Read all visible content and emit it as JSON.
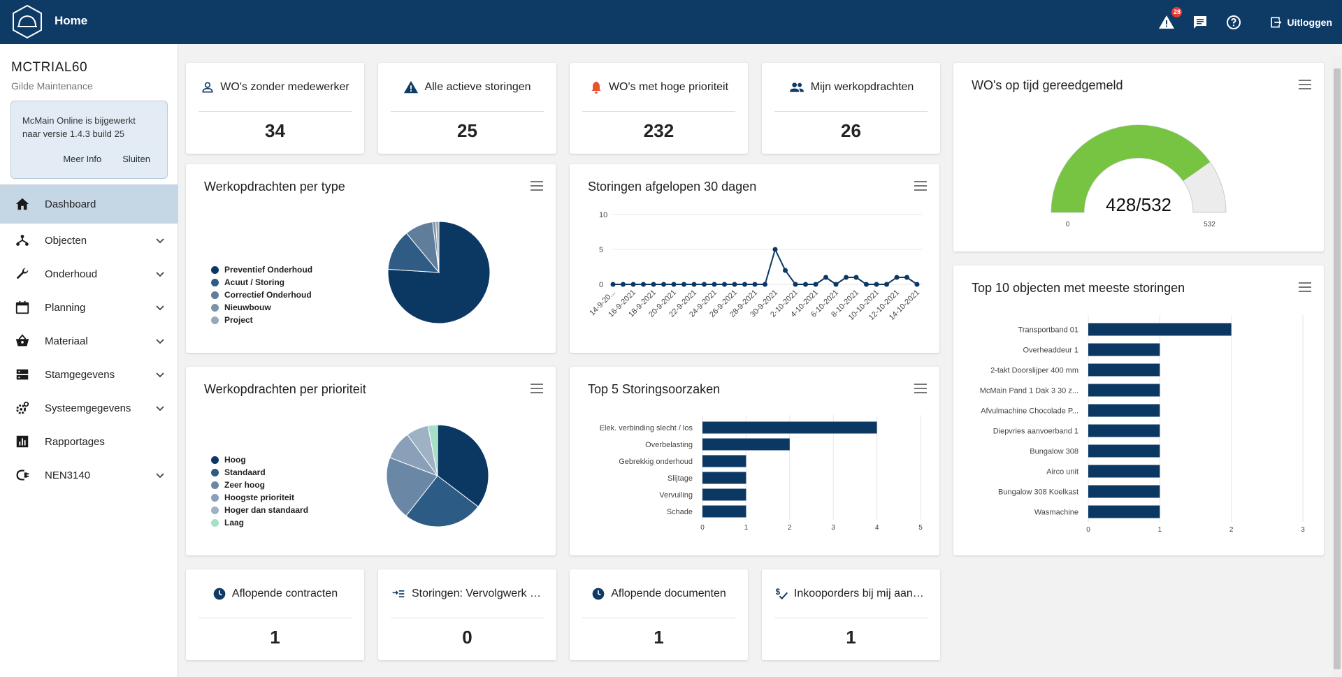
{
  "header": {
    "title": "Home",
    "alert_count": "28",
    "logout_label": "Uitloggen"
  },
  "sidebar": {
    "tenant": "MCTRIAL60",
    "company": "Gilde Maintenance",
    "notice": {
      "text": "McMain Online is bijgewerkt naar versie 1.4.3 build 25",
      "more_label": "Meer Info",
      "close_label": "Sluiten"
    },
    "items": [
      {
        "label": "Dashboard",
        "icon": "home-icon"
      },
      {
        "label": "Objecten",
        "icon": "hierarchy-icon"
      },
      {
        "label": "Onderhoud",
        "icon": "wrench-icon"
      },
      {
        "label": "Planning",
        "icon": "calendar-icon"
      },
      {
        "label": "Materiaal",
        "icon": "basket-icon"
      },
      {
        "label": "Stamgegevens",
        "icon": "storage-icon"
      },
      {
        "label": "Systeemgegevens",
        "icon": "settings-icon"
      },
      {
        "label": "Rapportages",
        "icon": "chart-icon"
      },
      {
        "label": "NEN3140",
        "icon": "plug-icon"
      }
    ]
  },
  "stats_top": [
    {
      "label": "WO's zonder medewerker",
      "value": "34",
      "icon": "person-outline-icon"
    },
    {
      "label": "Alle actieve storingen",
      "value": "25",
      "icon": "warning-icon"
    },
    {
      "label": "WO's met hoge prioriteit",
      "value": "232",
      "icon": "alarm-bell-icon"
    },
    {
      "label": "Mijn werkopdrachten",
      "value": "26",
      "icon": "group-icon"
    }
  ],
  "stats_bottom": [
    {
      "label": "Aflopende contracten",
      "value": "1",
      "icon": "clock-icon"
    },
    {
      "label": "Storingen: Vervolgwerk v...",
      "value": "0",
      "icon": "follow-up-icon"
    },
    {
      "label": "Aflopende documenten",
      "value": "1",
      "icon": "clock-icon"
    },
    {
      "label": "Inkooporders bij mij aang...",
      "value": "1",
      "icon": "money-check-icon"
    }
  ],
  "colors": {
    "navy": "#0e3a66",
    "accent_green": "#76c442",
    "alert_red": "#e53935"
  },
  "chart_data": [
    {
      "id": "type",
      "type": "pie",
      "title": "Werkopdrachten per type",
      "categories": [
        "Preventief Onderhoud",
        "Acuut / Storing",
        "Correctief Onderhoud",
        "Nieuwbouw",
        "Project"
      ],
      "values": [
        76,
        13,
        9,
        1,
        1
      ],
      "colors": [
        "#0b3763",
        "#2f5b84",
        "#607d9b",
        "#7d93ab",
        "#97a8ba"
      ]
    },
    {
      "id": "prioriteit",
      "type": "pie",
      "title": "Werkopdrachten per prioriteit",
      "categories": [
        "Hoog",
        "Standaard",
        "Zeer hoog",
        "Hoogste prioriteit",
        "Hoger dan standaard",
        "Laag"
      ],
      "values": [
        35,
        25,
        20,
        9,
        7,
        3
      ],
      "colors": [
        "#0b3763",
        "#2c5b85",
        "#6a88a6",
        "#8aa0b8",
        "#9eb1c5",
        "#a8dfc8"
      ]
    },
    {
      "id": "storingen30",
      "type": "line",
      "title": "Storingen afgelopen 30 dagen",
      "x": [
        "14-9-2021",
        "15-9-2021",
        "16-9-2021",
        "17-9-2021",
        "18-9-2021",
        "19-9-2021",
        "20-9-2021",
        "21-9-2021",
        "22-9-2021",
        "23-9-2021",
        "24-9-2021",
        "25-9-2021",
        "26-9-2021",
        "27-9-2021",
        "28-9-2021",
        "29-9-2021",
        "30-9-2021",
        "1-10-2021",
        "2-10-2021",
        "3-10-2021",
        "4-10-2021",
        "5-10-2021",
        "6-10-2021",
        "7-10-2021",
        "8-10-2021",
        "9-10-2021",
        "10-10-2021",
        "11-10-2021",
        "12-10-2021",
        "13-10-2021",
        "14-10-2021"
      ],
      "x_tick_labels": [
        "14-9-20...",
        "16-9-2021",
        "18-9-2021",
        "20-9-2021",
        "22-9-2021",
        "24-9-2021",
        "26-9-2021",
        "28-9-2021",
        "30-9-2021",
        "2-10-2021",
        "4-10-2021",
        "6-10-2021",
        "8-10-2021",
        "10-10-2021",
        "12-10-2021",
        "14-10-2021"
      ],
      "values": [
        0,
        0,
        0,
        0,
        0,
        0,
        0,
        0,
        0,
        0,
        0,
        0,
        0,
        0,
        0,
        0,
        5,
        2,
        0,
        0,
        0,
        1,
        0,
        1,
        1,
        0,
        0,
        0,
        1,
        1,
        0
      ],
      "ylim": [
        0,
        10
      ],
      "y_ticks": [
        0,
        5,
        10
      ]
    },
    {
      "id": "oorzaken",
      "type": "bar",
      "orientation": "horizontal",
      "title": "Top 5 Storingsoorzaken",
      "categories": [
        "Elek. verbinding slecht / los",
        "Overbelasting",
        "Gebrekkig onderhoud",
        "Slijtage",
        "Vervuiling",
        "Schade"
      ],
      "values": [
        4,
        2,
        1,
        1,
        1,
        1
      ],
      "xlim": [
        0,
        5
      ],
      "x_ticks": [
        0,
        1,
        2,
        3,
        4,
        5
      ]
    },
    {
      "id": "gauge",
      "type": "gauge",
      "title": "WO's op tijd gereedgemeld",
      "value": 428,
      "max": 532,
      "min": 0,
      "label": "428/532"
    },
    {
      "id": "top10",
      "type": "bar",
      "orientation": "horizontal",
      "title": "Top 10 objecten met meeste storingen",
      "categories": [
        "Transportband 01",
        "Overheaddeur 1",
        "2-takt Doorslijper 400 mm",
        "McMain Pand 1 Dak 3 30 z...",
        "Afvulmachine Chocolade P...",
        "Diepvries aanvoerband 1",
        "Bungalow 308",
        "Airco unit",
        "Bungalow 308 Koelkast",
        "Wasmachine"
      ],
      "values": [
        2,
        1,
        1,
        1,
        1,
        1,
        1,
        1,
        1,
        1
      ],
      "xlim": [
        0,
        3
      ],
      "x_ticks": [
        0,
        1,
        2,
        3
      ]
    }
  ]
}
